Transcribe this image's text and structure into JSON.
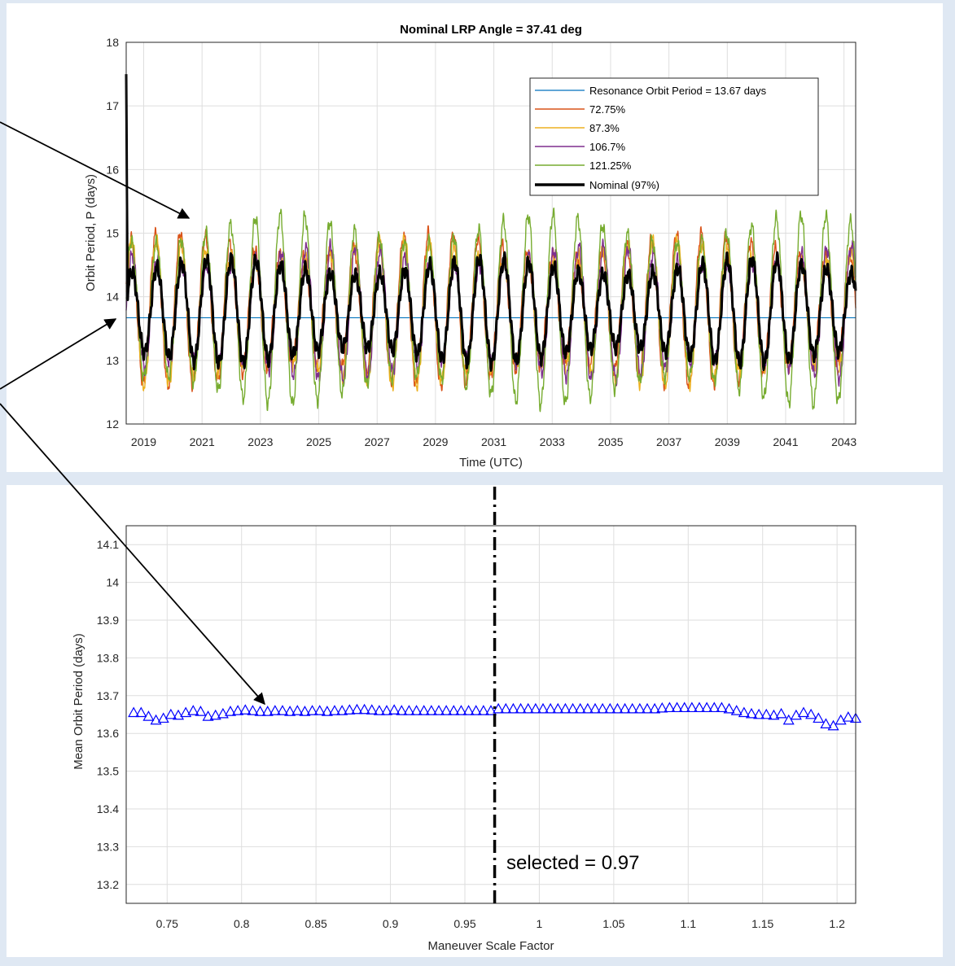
{
  "colors": {
    "background": "#dfe8f3",
    "panel": "#ffffff",
    "resonance": "#0072bd",
    "s72": "#d95319",
    "s87": "#edb120",
    "s106": "#7e2f8e",
    "s121": "#77ac30",
    "nominal": "#000000",
    "markers": "#0000ff"
  },
  "annotations": {
    "selected_label": "selected = 0.97"
  },
  "chart_data": [
    {
      "type": "line",
      "title": "Nominal LRP Angle = 37.41 deg",
      "xlabel": "Time (UTC)",
      "ylabel": "Orbit Period, P (days)",
      "xlim": [
        2018.4,
        2043.4
      ],
      "ylim": [
        12,
        18
      ],
      "grid": true,
      "legend_position": "top-right",
      "x_ticks": [
        "2019",
        "2021",
        "2023",
        "2025",
        "2027",
        "2029",
        "2031",
        "2033",
        "2035",
        "2037",
        "2039",
        "2041",
        "2043"
      ],
      "y_ticks": [
        "12",
        "13",
        "14",
        "15",
        "16",
        "17",
        "18"
      ],
      "oscillation_period_years": 0.85,
      "initial_spike_value": 17.5,
      "series": [
        {
          "name": "Resonance Orbit Period = 13.67 days",
          "color_key": "resonance",
          "constant_value": 13.67
        },
        {
          "name": "72.75%",
          "color_key": "s72",
          "typical_min": 12.6,
          "typical_max": 15.0
        },
        {
          "name": "87.3%",
          "color_key": "s87",
          "typical_min": 12.6,
          "typical_max": 14.9
        },
        {
          "name": "106.7%",
          "color_key": "s106",
          "typical_min": 12.7,
          "typical_max": 14.8
        },
        {
          "name": "121.25%",
          "color_key": "s121",
          "typical_min": 12.3,
          "typical_max": 15.3
        },
        {
          "name": "Nominal (97%)",
          "color_key": "nominal",
          "typical_min": 12.95,
          "typical_max": 14.6
        }
      ]
    },
    {
      "type": "scatter",
      "xlabel": "Maneuver Scale Factor",
      "ylabel": "Mean Orbit Period (days)",
      "xlim": [
        0.7225,
        1.2125
      ],
      "ylim": [
        13.15,
        14.15
      ],
      "grid": true,
      "x_ticks": [
        "0.75",
        "0.8",
        "0.85",
        "0.9",
        "0.95",
        "1",
        "1.05",
        "1.1",
        "1.15",
        "1.2"
      ],
      "y_ticks": [
        "13.2",
        "13.3",
        "13.4",
        "13.5",
        "13.6",
        "13.7",
        "13.8",
        "13.9",
        "14",
        "14.1"
      ],
      "selected_x": 0.97,
      "series": [
        {
          "marker": "triangle",
          "x": [
            0.7275,
            0.7325,
            0.7375,
            0.7425,
            0.7475,
            0.7525,
            0.7575,
            0.7625,
            0.7675,
            0.7725,
            0.7775,
            0.7825,
            0.7875,
            0.7925,
            0.7975,
            0.8025,
            0.8075,
            0.8125,
            0.8175,
            0.8225,
            0.8275,
            0.8325,
            0.8375,
            0.8425,
            0.8475,
            0.8525,
            0.8575,
            0.8625,
            0.8675,
            0.8725,
            0.8775,
            0.8825,
            0.8875,
            0.8925,
            0.8975,
            0.9025,
            0.9075,
            0.9125,
            0.9175,
            0.9225,
            0.9275,
            0.9325,
            0.9375,
            0.9425,
            0.9475,
            0.9525,
            0.9575,
            0.9625,
            0.9675,
            0.9725,
            0.9775,
            0.9825,
            0.9875,
            0.9925,
            0.9975,
            1.0025,
            1.0075,
            1.0125,
            1.0175,
            1.0225,
            1.0275,
            1.0325,
            1.0375,
            1.0425,
            1.0475,
            1.0525,
            1.0575,
            1.0625,
            1.0675,
            1.0725,
            1.0775,
            1.0825,
            1.0875,
            1.0925,
            1.0975,
            1.1025,
            1.1075,
            1.1125,
            1.1175,
            1.1225,
            1.1275,
            1.1325,
            1.1375,
            1.1425,
            1.1475,
            1.1525,
            1.1575,
            1.1625,
            1.1675,
            1.1725,
            1.1775,
            1.1825,
            1.1875,
            1.1925,
            1.1975,
            1.2025,
            1.2075,
            1.2125
          ],
          "y": [
            13.655,
            13.655,
            13.645,
            13.635,
            13.64,
            13.65,
            13.648,
            13.655,
            13.66,
            13.658,
            13.645,
            13.648,
            13.652,
            13.658,
            13.66,
            13.662,
            13.66,
            13.658,
            13.658,
            13.66,
            13.66,
            13.658,
            13.66,
            13.658,
            13.66,
            13.66,
            13.658,
            13.66,
            13.66,
            13.662,
            13.663,
            13.663,
            13.662,
            13.66,
            13.66,
            13.662,
            13.66,
            13.66,
            13.66,
            13.66,
            13.66,
            13.66,
            13.66,
            13.66,
            13.66,
            13.66,
            13.66,
            13.66,
            13.66,
            13.665,
            13.665,
            13.665,
            13.665,
            13.665,
            13.665,
            13.665,
            13.665,
            13.665,
            13.665,
            13.665,
            13.665,
            13.665,
            13.665,
            13.665,
            13.665,
            13.665,
            13.665,
            13.665,
            13.665,
            13.665,
            13.665,
            13.667,
            13.668,
            13.668,
            13.668,
            13.668,
            13.668,
            13.668,
            13.668,
            13.668,
            13.665,
            13.66,
            13.655,
            13.652,
            13.65,
            13.65,
            13.648,
            13.652,
            13.635,
            13.648,
            13.655,
            13.65,
            13.64,
            13.625,
            13.62,
            13.635,
            13.643,
            13.64
          ]
        }
      ]
    }
  ]
}
